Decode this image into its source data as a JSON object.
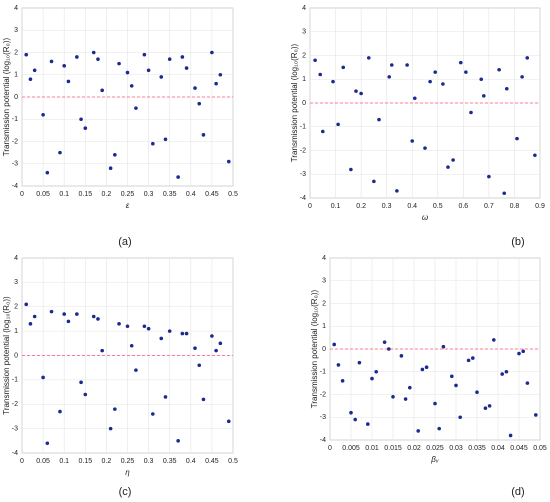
{
  "chart_data": [
    {
      "type": "scatter",
      "panel_label": "(a)",
      "xlabel": "ε",
      "ylabel": "Transmission potential (log₁₀(R₀))",
      "color": "#1c2a8f",
      "grid": true,
      "reference_line": 0,
      "reference_color": "#ff5577",
      "xlim": [
        0,
        0.5
      ],
      "xticks": [
        0,
        0.05,
        0.1,
        0.15,
        0.2,
        0.25,
        0.3,
        0.35,
        0.4,
        0.45,
        0.5
      ],
      "ylim": [
        -4,
        4
      ],
      "yticks": [
        -4,
        -3,
        -2,
        -1,
        0,
        1,
        2,
        3,
        4
      ],
      "x": [
        0.01,
        0.03,
        0.05,
        0.07,
        0.09,
        0.11,
        0.13,
        0.15,
        0.17,
        0.19,
        0.21,
        0.23,
        0.25,
        0.27,
        0.29,
        0.31,
        0.33,
        0.35,
        0.37,
        0.39,
        0.41,
        0.43,
        0.45,
        0.47,
        0.49,
        0.02,
        0.06,
        0.1,
        0.14,
        0.18,
        0.22,
        0.26,
        0.3,
        0.34,
        0.38,
        0.42,
        0.46
      ],
      "y": [
        1.9,
        1.2,
        -0.8,
        1.6,
        -2.5,
        0.7,
        1.8,
        -1.4,
        2.0,
        0.3,
        -3.2,
        1.5,
        1.1,
        -0.5,
        1.9,
        -2.1,
        0.9,
        1.7,
        -3.6,
        1.3,
        0.4,
        -1.7,
        2.0,
        1.0,
        -2.9,
        0.8,
        -3.4,
        1.4,
        -1.0,
        1.7,
        -2.6,
        0.5,
        1.2,
        -1.9,
        1.8,
        -0.3,
        0.6
      ]
    },
    {
      "type": "scatter",
      "panel_label": "(b)",
      "xlabel": "ω",
      "ylabel": "Transmission potential (log₁₀(R₀))",
      "color": "#1c2a8f",
      "grid": true,
      "reference_line": 0,
      "reference_color": "#ff5577",
      "xlim": [
        0,
        0.9
      ],
      "xticks": [
        0,
        0.1,
        0.2,
        0.3,
        0.4,
        0.5,
        0.6,
        0.7,
        0.8,
        0.9
      ],
      "ylim": [
        -4,
        4
      ],
      "yticks": [
        -4,
        -3,
        -2,
        -1,
        0,
        1,
        2,
        3,
        4
      ],
      "x": [
        0.02,
        0.05,
        0.09,
        0.13,
        0.16,
        0.2,
        0.23,
        0.27,
        0.31,
        0.34,
        0.38,
        0.41,
        0.45,
        0.49,
        0.52,
        0.56,
        0.59,
        0.63,
        0.67,
        0.7,
        0.74,
        0.77,
        0.81,
        0.85,
        0.88,
        0.04,
        0.11,
        0.18,
        0.25,
        0.32,
        0.4,
        0.47,
        0.54,
        0.61,
        0.68,
        0.76,
        0.83
      ],
      "y": [
        1.8,
        -1.2,
        0.9,
        1.5,
        -2.8,
        0.4,
        1.9,
        -0.7,
        1.1,
        -3.7,
        1.6,
        0.2,
        -1.9,
        1.3,
        0.8,
        -2.4,
        1.7,
        -0.4,
        1.0,
        -3.1,
        1.4,
        0.6,
        -1.5,
        1.9,
        -2.2,
        1.2,
        -0.9,
        0.5,
        -3.3,
        1.6,
        -1.6,
        0.9,
        -2.7,
        1.3,
        0.3,
        -3.8,
        1.1
      ]
    },
    {
      "type": "scatter",
      "panel_label": "(c)",
      "xlabel": "η",
      "ylabel": "Transmission potential (log₁₀(R₀))",
      "color": "#1c2a8f",
      "grid": true,
      "reference_line": 0,
      "reference_color": "#ff5577",
      "xlim": [
        0,
        0.5
      ],
      "xticks": [
        0,
        0.05,
        0.1,
        0.15,
        0.2,
        0.25,
        0.3,
        0.35,
        0.4,
        0.45,
        0.5
      ],
      "ylim": [
        -4,
        4
      ],
      "yticks": [
        -4,
        -3,
        -2,
        -1,
        0,
        1,
        2,
        3,
        4
      ],
      "x": [
        0.01,
        0.03,
        0.05,
        0.07,
        0.09,
        0.11,
        0.13,
        0.15,
        0.17,
        0.19,
        0.21,
        0.23,
        0.25,
        0.27,
        0.29,
        0.31,
        0.33,
        0.35,
        0.37,
        0.39,
        0.41,
        0.43,
        0.45,
        0.47,
        0.49,
        0.02,
        0.06,
        0.1,
        0.14,
        0.18,
        0.22,
        0.26,
        0.3,
        0.34,
        0.38,
        0.42,
        0.46
      ],
      "y": [
        2.1,
        1.6,
        -0.9,
        1.8,
        -2.3,
        1.4,
        1.7,
        -1.6,
        1.6,
        0.2,
        -3.0,
        1.3,
        1.2,
        -0.6,
        1.2,
        -2.4,
        0.7,
        1.0,
        -3.5,
        0.9,
        0.3,
        -1.8,
        0.8,
        0.5,
        -2.7,
        1.3,
        -3.6,
        1.7,
        -1.1,
        1.5,
        -2.2,
        0.4,
        1.1,
        -1.7,
        0.9,
        -0.4,
        0.2
      ]
    },
    {
      "type": "scatter",
      "panel_label": "(d)",
      "xlabel": "βᵥ",
      "ylabel": "Transmission potential (log₁₀(R₀))",
      "color": "#1c2a8f",
      "grid": true,
      "reference_line": 0,
      "reference_color": "#ff5577",
      "xlim": [
        0,
        0.05
      ],
      "xticks": [
        0,
        0.005,
        0.01,
        0.015,
        0.02,
        0.025,
        0.03,
        0.035,
        0.04,
        0.045,
        0.05
      ],
      "ylim": [
        -4,
        4
      ],
      "yticks": [
        -4,
        -3,
        -2,
        -1,
        0,
        1,
        2,
        3,
        4
      ],
      "x": [
        0.001,
        0.003,
        0.005,
        0.007,
        0.009,
        0.011,
        0.013,
        0.015,
        0.017,
        0.019,
        0.021,
        0.023,
        0.025,
        0.027,
        0.029,
        0.031,
        0.033,
        0.035,
        0.037,
        0.039,
        0.041,
        0.043,
        0.045,
        0.047,
        0.049,
        0.002,
        0.006,
        0.01,
        0.014,
        0.018,
        0.022,
        0.026,
        0.03,
        0.034,
        0.038,
        0.042,
        0.046
      ],
      "y": [
        0.2,
        -1.4,
        -2.8,
        -0.6,
        -3.3,
        -1.0,
        0.3,
        -2.1,
        -0.3,
        -1.7,
        -3.6,
        -0.8,
        -2.4,
        0.1,
        -1.2,
        -3.0,
        -0.5,
        -1.9,
        -2.6,
        0.4,
        -1.1,
        -3.8,
        -0.2,
        -1.5,
        -2.9,
        -0.7,
        -3.1,
        -1.3,
        0.0,
        -2.2,
        -0.9,
        -3.5,
        -1.6,
        -0.4,
        -2.5,
        -1.0,
        -0.1
      ]
    }
  ]
}
